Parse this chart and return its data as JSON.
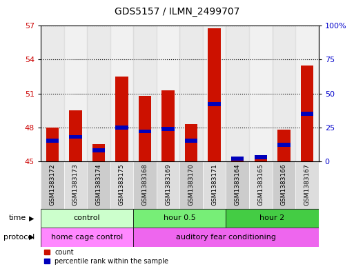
{
  "title": "GDS5157 / ILMN_2499707",
  "samples": [
    "GSM1383172",
    "GSM1383173",
    "GSM1383174",
    "GSM1383175",
    "GSM1383168",
    "GSM1383169",
    "GSM1383170",
    "GSM1383171",
    "GSM1383164",
    "GSM1383165",
    "GSM1383166",
    "GSM1383167"
  ],
  "count_values": [
    48.0,
    49.5,
    46.5,
    52.5,
    50.8,
    51.3,
    48.3,
    56.8,
    45.3,
    45.5,
    47.8,
    53.5
  ],
  "count_base": 45.0,
  "percentile_values": [
    15,
    18,
    8,
    25,
    22,
    24,
    15,
    42,
    2,
    3,
    12,
    35
  ],
  "ylim_left": [
    45,
    57
  ],
  "ylim_right": [
    0,
    100
  ],
  "yticks_left": [
    45,
    48,
    51,
    54,
    57
  ],
  "yticks_right": [
    0,
    25,
    50,
    75,
    100
  ],
  "bar_color": "#cc1100",
  "percentile_color": "#0000bb",
  "bar_width": 0.55,
  "blue_bar_height": 0.35,
  "time_groups": [
    {
      "label": "control",
      "start": 0,
      "end": 3,
      "color": "#ccffcc"
    },
    {
      "label": "hour 0.5",
      "start": 4,
      "end": 7,
      "color": "#77ee77"
    },
    {
      "label": "hour 2",
      "start": 8,
      "end": 11,
      "color": "#44cc44"
    }
  ],
  "protocol_groups": [
    {
      "label": "home cage control",
      "start": 0,
      "end": 3,
      "color": "#ff88ff"
    },
    {
      "label": "auditory fear conditioning",
      "start": 4,
      "end": 11,
      "color": "#ee66ee"
    }
  ],
  "tick_label_color_left": "#cc0000",
  "tick_label_color_right": "#0000cc",
  "legend_count_label": "count",
  "legend_percentile_label": "percentile rank within the sample",
  "time_label": "time",
  "protocol_label": "protocol",
  "col_bg_even": "#cccccc",
  "col_bg_odd": "#dddddd"
}
